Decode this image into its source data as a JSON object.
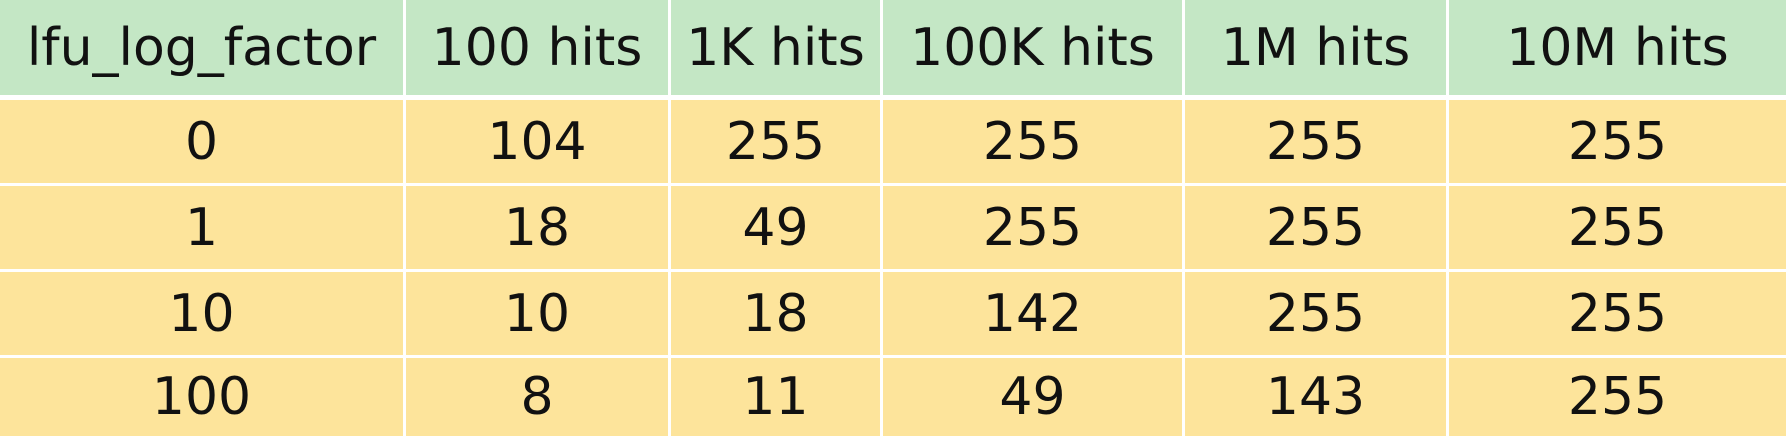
{
  "table": {
    "headers": [
      "lfu_log_factor",
      "100 hits",
      "1K hits",
      "100K hits",
      "1M hits",
      "10M hits"
    ],
    "rows": [
      [
        "0",
        "104",
        "255",
        "255",
        "255",
        "255"
      ],
      [
        "1",
        "18",
        "49",
        "255",
        "255",
        "255"
      ],
      [
        "10",
        "10",
        "18",
        "142",
        "255",
        "255"
      ],
      [
        "100",
        "8",
        "11",
        "49",
        "143",
        "255"
      ]
    ]
  },
  "colors": {
    "header_bg": "#c4e7c5",
    "body_bg": "#fde49b",
    "grid_line": "#ffffff"
  }
}
